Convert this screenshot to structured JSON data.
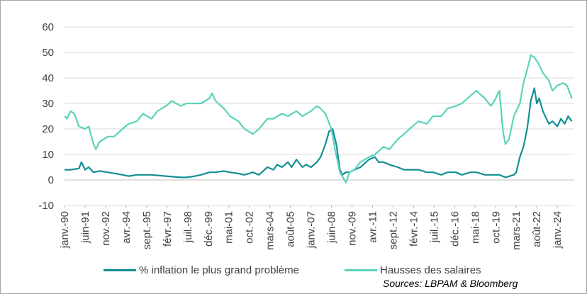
{
  "chart_data": {
    "type": "line",
    "ylim": [
      -10,
      60
    ],
    "yticks": [
      -10,
      0,
      10,
      20,
      30,
      40,
      50,
      60
    ],
    "xlim": [
      "1990-01",
      "2025-03"
    ],
    "xticks": [
      {
        "label": "janv.-90",
        "date": "1990-01"
      },
      {
        "label": "juin-91",
        "date": "1991-06"
      },
      {
        "label": "nov.-92",
        "date": "1992-11"
      },
      {
        "label": "avr.-94",
        "date": "1994-04"
      },
      {
        "label": "sept.-95",
        "date": "1995-09"
      },
      {
        "label": "févr.-97",
        "date": "1997-02"
      },
      {
        "label": "juil.-98",
        "date": "1998-07"
      },
      {
        "label": "déc.-99",
        "date": "1999-12"
      },
      {
        "label": "mai-01",
        "date": "2001-05"
      },
      {
        "label": "oct.-02",
        "date": "2002-10"
      },
      {
        "label": "mars-04",
        "date": "2004-03"
      },
      {
        "label": "août-05",
        "date": "2005-08"
      },
      {
        "label": "janv.-07",
        "date": "2007-01"
      },
      {
        "label": "juin-08",
        "date": "2008-06"
      },
      {
        "label": "nov.-09",
        "date": "2009-11"
      },
      {
        "label": "avr.-11",
        "date": "2011-04"
      },
      {
        "label": "sept.-12",
        "date": "2012-09"
      },
      {
        "label": "févr.-14",
        "date": "2014-02"
      },
      {
        "label": "juil.-15",
        "date": "2015-07"
      },
      {
        "label": "déc.-16",
        "date": "2016-12"
      },
      {
        "label": "mai-18",
        "date": "2018-05"
      },
      {
        "label": "oct.-19",
        "date": "2019-10"
      },
      {
        "label": "mars-21",
        "date": "2021-03"
      },
      {
        "label": "août-22",
        "date": "2022-08"
      },
      {
        "label": "janv.-24",
        "date": "2024-01"
      }
    ],
    "grid": true,
    "legend_position": "bottom",
    "series": [
      {
        "name": "% inflation le plus grand problème",
        "color": "#138f95",
        "points": [
          [
            "1990-01",
            4
          ],
          [
            "1990-06",
            4
          ],
          [
            "1991-01",
            4.5
          ],
          [
            "1991-03",
            7
          ],
          [
            "1991-06",
            4
          ],
          [
            "1991-09",
            5
          ],
          [
            "1992-01",
            3
          ],
          [
            "1992-06",
            3.5
          ],
          [
            "1993-01",
            3
          ],
          [
            "1994-01",
            2
          ],
          [
            "1994-06",
            1.5
          ],
          [
            "1995-01",
            2
          ],
          [
            "1996-01",
            2
          ],
          [
            "1997-01",
            1.5
          ],
          [
            "1998-01",
            1
          ],
          [
            "1998-06",
            1
          ],
          [
            "1999-01",
            1.5
          ],
          [
            "1999-06",
            2
          ],
          [
            "2000-01",
            3
          ],
          [
            "2000-06",
            3
          ],
          [
            "2001-01",
            3.5
          ],
          [
            "2001-06",
            3
          ],
          [
            "2002-01",
            2.5
          ],
          [
            "2002-06",
            2
          ],
          [
            "2003-01",
            3
          ],
          [
            "2003-06",
            2
          ],
          [
            "2004-01",
            5
          ],
          [
            "2004-06",
            4
          ],
          [
            "2004-09",
            6
          ],
          [
            "2005-01",
            5
          ],
          [
            "2005-06",
            7
          ],
          [
            "2005-09",
            5
          ],
          [
            "2006-01",
            8
          ],
          [
            "2006-06",
            5
          ],
          [
            "2006-09",
            6
          ],
          [
            "2007-01",
            5
          ],
          [
            "2007-06",
            7
          ],
          [
            "2007-09",
            9
          ],
          [
            "2008-01",
            14
          ],
          [
            "2008-04",
            19
          ],
          [
            "2008-07",
            20
          ],
          [
            "2008-10",
            14
          ],
          [
            "2009-01",
            4
          ],
          [
            "2009-03",
            2
          ],
          [
            "2009-06",
            3
          ],
          [
            "2009-09",
            3
          ],
          [
            "2010-01",
            4
          ],
          [
            "2010-06",
            5
          ],
          [
            "2011-01",
            8
          ],
          [
            "2011-06",
            9
          ],
          [
            "2011-09",
            7
          ],
          [
            "2012-01",
            7
          ],
          [
            "2012-06",
            6
          ],
          [
            "2013-01",
            5
          ],
          [
            "2013-06",
            4
          ],
          [
            "2014-01",
            4
          ],
          [
            "2014-06",
            4
          ],
          [
            "2015-01",
            3
          ],
          [
            "2015-06",
            3
          ],
          [
            "2016-01",
            2
          ],
          [
            "2016-06",
            3
          ],
          [
            "2017-01",
            3
          ],
          [
            "2017-06",
            2
          ],
          [
            "2018-01",
            3
          ],
          [
            "2018-06",
            3
          ],
          [
            "2019-01",
            2
          ],
          [
            "2019-06",
            2
          ],
          [
            "2020-01",
            2
          ],
          [
            "2020-06",
            1
          ],
          [
            "2021-01",
            2
          ],
          [
            "2021-03",
            3
          ],
          [
            "2021-06",
            9
          ],
          [
            "2021-09",
            13
          ],
          [
            "2021-12",
            20
          ],
          [
            "2022-03",
            31
          ],
          [
            "2022-06",
            36
          ],
          [
            "2022-08",
            30
          ],
          [
            "2022-10",
            32
          ],
          [
            "2023-01",
            27
          ],
          [
            "2023-06",
            22
          ],
          [
            "2023-09",
            23
          ],
          [
            "2024-01",
            21
          ],
          [
            "2024-04",
            24
          ],
          [
            "2024-07",
            22
          ],
          [
            "2024-10",
            25
          ],
          [
            "2025-01",
            23
          ]
        ]
      },
      {
        "name": "Hausses des salaires",
        "color": "#5bd3bb",
        "points": [
          [
            "1990-01",
            25
          ],
          [
            "1990-03",
            24
          ],
          [
            "1990-06",
            27
          ],
          [
            "1990-09",
            26
          ],
          [
            "1991-01",
            21
          ],
          [
            "1991-06",
            20
          ],
          [
            "1991-09",
            21
          ],
          [
            "1992-01",
            14
          ],
          [
            "1992-03",
            12
          ],
          [
            "1992-06",
            15
          ],
          [
            "1993-01",
            17
          ],
          [
            "1993-06",
            17
          ],
          [
            "1994-01",
            20
          ],
          [
            "1994-06",
            22
          ],
          [
            "1995-01",
            23
          ],
          [
            "1995-06",
            26
          ],
          [
            "1996-01",
            24
          ],
          [
            "1996-06",
            27
          ],
          [
            "1997-01",
            29
          ],
          [
            "1997-06",
            31
          ],
          [
            "1998-01",
            29
          ],
          [
            "1998-06",
            30
          ],
          [
            "1999-01",
            30
          ],
          [
            "1999-06",
            30
          ],
          [
            "2000-01",
            32
          ],
          [
            "2000-03",
            34
          ],
          [
            "2000-06",
            31
          ],
          [
            "2001-01",
            28
          ],
          [
            "2001-06",
            25
          ],
          [
            "2002-01",
            23
          ],
          [
            "2002-06",
            20
          ],
          [
            "2003-01",
            18
          ],
          [
            "2003-06",
            20
          ],
          [
            "2004-01",
            24
          ],
          [
            "2004-06",
            24
          ],
          [
            "2005-01",
            26
          ],
          [
            "2005-06",
            25
          ],
          [
            "2006-01",
            27
          ],
          [
            "2006-06",
            25
          ],
          [
            "2007-01",
            27
          ],
          [
            "2007-06",
            29
          ],
          [
            "2007-09",
            28
          ],
          [
            "2008-01",
            26
          ],
          [
            "2008-06",
            20
          ],
          [
            "2008-09",
            12
          ],
          [
            "2009-01",
            3
          ],
          [
            "2009-06",
            -1
          ],
          [
            "2009-09",
            3
          ],
          [
            "2010-01",
            4
          ],
          [
            "2010-06",
            7
          ],
          [
            "2011-01",
            9
          ],
          [
            "2011-06",
            10
          ],
          [
            "2012-01",
            13
          ],
          [
            "2012-06",
            12
          ],
          [
            "2013-01",
            16
          ],
          [
            "2013-06",
            18
          ],
          [
            "2014-01",
            21
          ],
          [
            "2014-06",
            23
          ],
          [
            "2015-01",
            22
          ],
          [
            "2015-06",
            25
          ],
          [
            "2016-01",
            25
          ],
          [
            "2016-06",
            28
          ],
          [
            "2017-01",
            29
          ],
          [
            "2017-06",
            30
          ],
          [
            "2018-01",
            33
          ],
          [
            "2018-06",
            35
          ],
          [
            "2019-01",
            32
          ],
          [
            "2019-06",
            29
          ],
          [
            "2019-09",
            31
          ],
          [
            "2020-01",
            35
          ],
          [
            "2020-04",
            19
          ],
          [
            "2020-06",
            14
          ],
          [
            "2020-09",
            16
          ],
          [
            "2021-01",
            25
          ],
          [
            "2021-06",
            30
          ],
          [
            "2021-09",
            38
          ],
          [
            "2022-01",
            45
          ],
          [
            "2022-03",
            49
          ],
          [
            "2022-06",
            48
          ],
          [
            "2022-09",
            46
          ],
          [
            "2023-01",
            42
          ],
          [
            "2023-06",
            39
          ],
          [
            "2023-09",
            35
          ],
          [
            "2024-01",
            37
          ],
          [
            "2024-06",
            38
          ],
          [
            "2024-09",
            37
          ],
          [
            "2025-01",
            32
          ]
        ]
      }
    ]
  },
  "legend": {
    "items": [
      {
        "label": "% inflation le plus grand problème",
        "color": "#138f95"
      },
      {
        "label": "Hausses des salaires",
        "color": "#5bd3bb"
      }
    ]
  },
  "source": "Sources: LBPAM & Bloomberg"
}
